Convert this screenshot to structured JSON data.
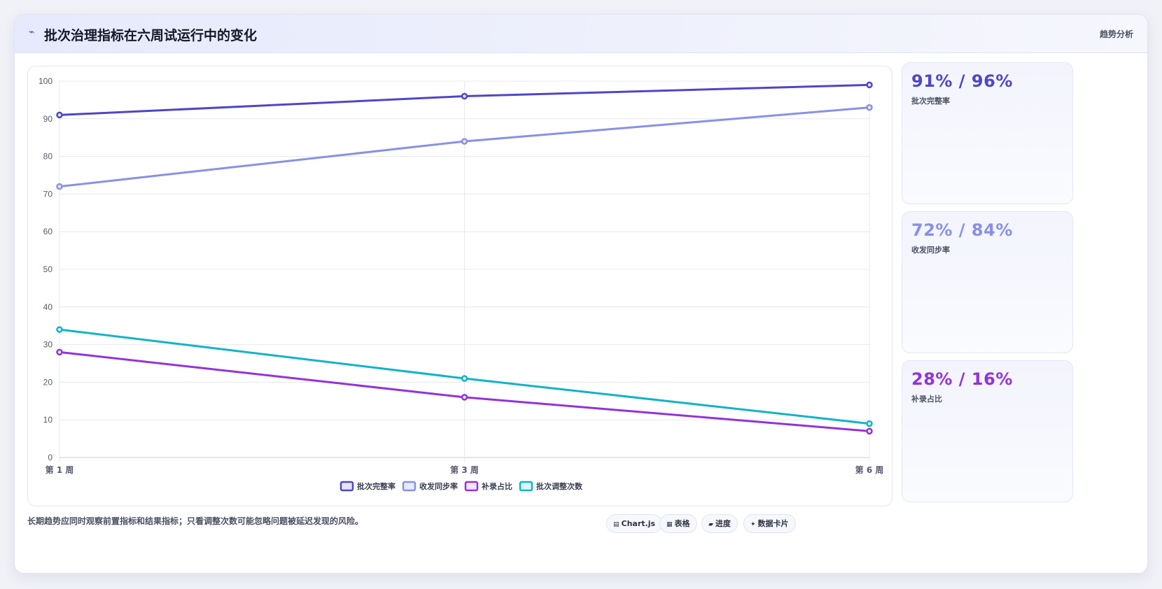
{
  "header": {
    "icon": "trend-line-icon",
    "title": "批次治理指标在六周试运行中的变化",
    "tag": "趋势分析"
  },
  "colors": {
    "series1": "#4f46c8",
    "series2": "#8891e6",
    "series3": "#9333d8",
    "series4": "#12b3c8"
  },
  "chart_data": {
    "type": "line",
    "categories": [
      "第 1 周",
      "第 3 周",
      "第 6 周"
    ],
    "ylim": [
      0,
      100
    ],
    "yticks": [
      0,
      10,
      20,
      30,
      40,
      50,
      60,
      70,
      80,
      90,
      100
    ],
    "grid": true,
    "legend_position": "bottom",
    "series": [
      {
        "name": "批次完整率",
        "values": [
          91,
          96,
          99
        ],
        "color": "#4f46c8",
        "fill": "#e6e4fa"
      },
      {
        "name": "收发同步率",
        "values": [
          72,
          84,
          93
        ],
        "color": "#8891e6",
        "fill": "#e8eafb"
      },
      {
        "name": "补录占比",
        "values": [
          28,
          16,
          7
        ],
        "color": "#9333d8",
        "fill": "#f1e4fb"
      },
      {
        "name": "批次调整次数",
        "values": [
          34,
          21,
          9
        ],
        "color": "#12b3c8",
        "fill": "#dff6f9"
      }
    ]
  },
  "stats": [
    {
      "value": "91% / 96%",
      "label": "批次完整率",
      "color": "#4f46c8"
    },
    {
      "value": "72% / 84%",
      "label": "收发同步率",
      "color": "#8891e6"
    },
    {
      "value": "28% / 16%",
      "label": "补录占比",
      "color": "#9333d8"
    }
  ],
  "note": "长期趋势应同时观察前置指标和结果指标；只看调整次数可能忽略问题被延迟发现的风险。",
  "toolbar": [
    {
      "icon": "chart-icon",
      "glyph": "▤",
      "label": "Chart.js"
    },
    {
      "icon": "table-icon",
      "glyph": "▦",
      "label": "表格"
    },
    {
      "icon": "progress-icon",
      "glyph": "▰",
      "label": "进度"
    },
    {
      "icon": "sparkle-icon",
      "glyph": "✦",
      "label": "数据卡片"
    }
  ]
}
